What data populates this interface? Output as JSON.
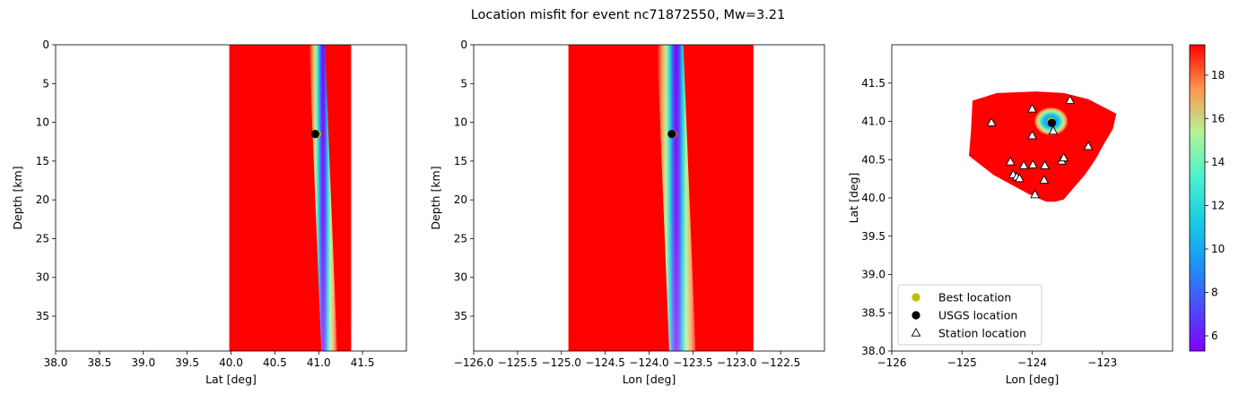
{
  "figure": {
    "title": "Location misfit for event nc71872550, Mw=3.21"
  },
  "chart_data": [
    {
      "type": "heatmap",
      "id": "lat-depth",
      "xlabel": "Lat [deg]",
      "ylabel": "Depth [km]",
      "xlim": [
        38.0,
        42.0
      ],
      "ylim": [
        39.5,
        0
      ],
      "xticks": [
        "38.0",
        "38.5",
        "39.0",
        "39.5",
        "40.0",
        "40.5",
        "41.0",
        "41.5"
      ],
      "xtick_values": [
        38.0,
        38.5,
        39.0,
        39.5,
        40.0,
        40.5,
        41.0,
        41.5
      ],
      "yticks": [
        "0",
        "5",
        "10",
        "15",
        "20",
        "25",
        "30",
        "35"
      ],
      "ytick_values": [
        0,
        5,
        10,
        15,
        20,
        25,
        30,
        35
      ],
      "grid_extent_x": [
        39.98,
        41.37
      ],
      "minimum_valley": {
        "top": 40.98,
        "bottom": 41.12,
        "half_width_deg": 0.09
      },
      "usgs_location": {
        "x": 40.96,
        "y": 11.5
      },
      "best_location": {
        "x": 40.98,
        "y": 11.5
      }
    },
    {
      "type": "heatmap",
      "id": "lon-depth",
      "xlabel": "Lon [deg]",
      "ylabel": "Depth [km]",
      "xlim": [
        -126.0,
        -122.0
      ],
      "ylim": [
        39.5,
        0
      ],
      "xticks": [
        "−126.0",
        "−125.5",
        "−125.0",
        "−124.5",
        "−124.0",
        "−123.5",
        "−123.0",
        "−122.5"
      ],
      "xtick_values": [
        -126.0,
        -125.5,
        -125.0,
        -124.5,
        -124.0,
        -123.5,
        -123.0,
        -122.5
      ],
      "yticks": [
        "0",
        "5",
        "10",
        "15",
        "20",
        "25",
        "30",
        "35"
      ],
      "ytick_values": [
        0,
        5,
        10,
        15,
        20,
        25,
        30,
        35
      ],
      "grid_extent_x": [
        -124.92,
        -122.81
      ],
      "minimum_valley": {
        "top": -123.76,
        "bottom": -123.62,
        "half_width_deg": 0.15
      },
      "usgs_location": {
        "x": -123.74,
        "y": 11.5
      },
      "best_location": {
        "x": -123.73,
        "y": 11.5
      }
    },
    {
      "type": "heatmap",
      "id": "map",
      "xlabel": "Lon [deg]",
      "ylabel": "Lat [deg]",
      "xlim": [
        -126.0,
        -122.0
      ],
      "ylim": [
        38.0,
        42.0
      ],
      "xticks": [
        "−126",
        "−125",
        "−124",
        "−123"
      ],
      "xtick_values": [
        -126,
        -125,
        -124,
        -123
      ],
      "yticks": [
        "38.0",
        "38.5",
        "39.0",
        "39.5",
        "40.0",
        "40.5",
        "41.0",
        "41.5"
      ],
      "ytick_values": [
        38.0,
        38.5,
        39.0,
        39.5,
        40.0,
        40.5,
        41.0,
        41.5
      ],
      "region_polygon": [
        [
          -124.85,
          41.27
        ],
        [
          -124.5,
          41.37
        ],
        [
          -123.95,
          41.39
        ],
        [
          -123.55,
          41.37
        ],
        [
          -123.2,
          41.29
        ],
        [
          -122.8,
          41.1
        ],
        [
          -122.85,
          40.9
        ],
        [
          -122.98,
          40.7
        ],
        [
          -123.1,
          40.5
        ],
        [
          -123.25,
          40.3
        ],
        [
          -123.42,
          40.12
        ],
        [
          -123.55,
          39.98
        ],
        [
          -123.67,
          39.95
        ],
        [
          -123.8,
          39.95
        ],
        [
          -124.05,
          40.05
        ],
        [
          -124.55,
          40.3
        ],
        [
          -124.9,
          40.55
        ],
        [
          -124.87,
          40.9
        ]
      ],
      "minimum": {
        "x": -123.73,
        "y": 41.0
      },
      "usgs_location": {
        "x": -123.72,
        "y": 40.98
      },
      "best_location": {
        "x": -123.73,
        "y": 41.0
      },
      "stations": [
        {
          "x": -124.58,
          "y": 40.98
        },
        {
          "x": -124.0,
          "y": 41.16
        },
        {
          "x": -123.46,
          "y": 41.27
        },
        {
          "x": -123.7,
          "y": 40.87
        },
        {
          "x": -124.0,
          "y": 40.81
        },
        {
          "x": -123.2,
          "y": 40.67
        },
        {
          "x": -124.31,
          "y": 40.47
        },
        {
          "x": -124.12,
          "y": 40.42
        },
        {
          "x": -123.99,
          "y": 40.43
        },
        {
          "x": -123.82,
          "y": 40.42
        },
        {
          "x": -123.58,
          "y": 40.48
        },
        {
          "x": -123.55,
          "y": 40.52
        },
        {
          "x": -124.27,
          "y": 40.3
        },
        {
          "x": -124.22,
          "y": 40.27
        },
        {
          "x": -124.18,
          "y": 40.25
        },
        {
          "x": -123.83,
          "y": 40.23
        },
        {
          "x": -123.96,
          "y": 40.04
        }
      ],
      "legend": {
        "placement": "lower-left",
        "entries": [
          "Best location",
          "USGS location",
          "Station location"
        ]
      },
      "colorbar": {
        "colormap": "rainbow",
        "range": [
          5.3,
          19.4
        ],
        "ticks": [
          "6",
          "8",
          "10",
          "12",
          "14",
          "16",
          "18"
        ],
        "tick_values": [
          6,
          8,
          10,
          12,
          14,
          16,
          18
        ]
      }
    }
  ],
  "colors": {
    "field_max": "#ff0000",
    "best_location": "#bfbf00",
    "usgs_location": "#000000",
    "station_fill": "#ffffff",
    "station_edge": "#000000"
  }
}
